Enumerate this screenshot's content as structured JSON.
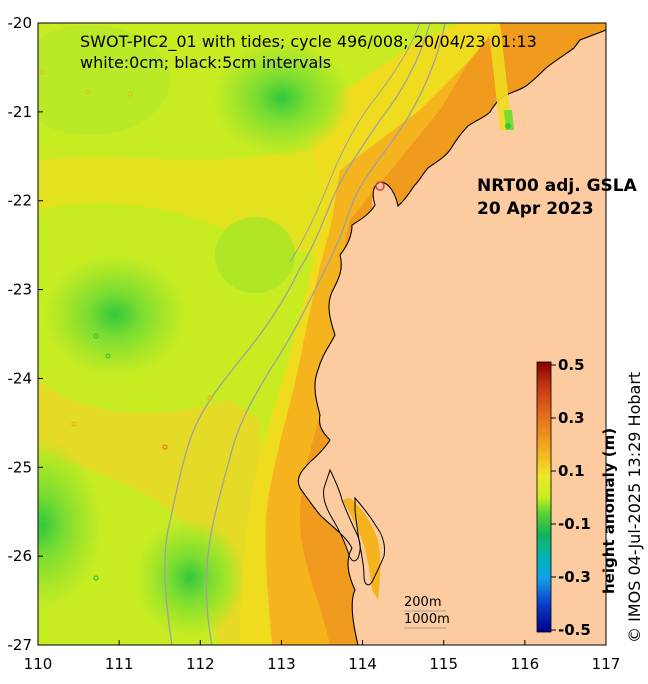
{
  "map": {
    "title_line1": "SWOT-PIC2_01 with tides; cycle 496/008; 20/04/23 01:13",
    "title_line2": "white:0cm; black:5cm intervals",
    "product_line1": "NRT00 adj. GSLA",
    "product_line2": "20 Apr 2023",
    "x_ticks": [
      "110",
      "111",
      "112",
      "113",
      "114",
      "115",
      "116",
      "117"
    ],
    "y_ticks": [
      "-20",
      "-21",
      "-22",
      "-23",
      "-24",
      "-25",
      "-26",
      "-27"
    ],
    "lon_range": [
      110,
      117
    ],
    "lat_range": [
      -27,
      -20
    ],
    "scale_line1": "200m",
    "scale_line2": "1000m",
    "land_color": "#fccca0",
    "contour_color": "#a0a0a0"
  },
  "colorbar": {
    "title": "height anomaly (m)",
    "tick_labels": [
      "0.5",
      "0.3",
      "0.1",
      "-0.1",
      "-0.3",
      "-0.5"
    ],
    "range": [
      -0.5,
      0.5
    ],
    "colors": [
      "#8b0000",
      "#d2541a",
      "#f08c1e",
      "#f5b41e",
      "#f0e628",
      "#d2f01e",
      "#96e628",
      "#28c850",
      "#00aa7a",
      "#14a0dc",
      "#0a50dc",
      "#00008b"
    ]
  },
  "credit": "© IMOS 04-Jul-2025 13:29 Hobart"
}
